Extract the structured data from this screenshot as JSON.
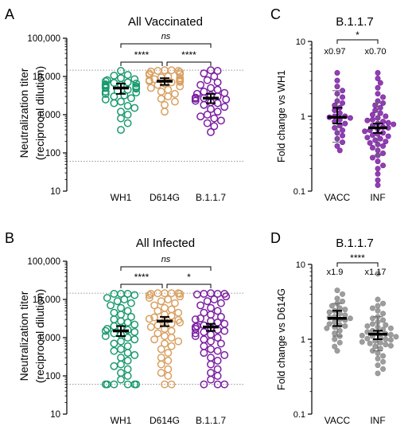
{
  "chart_data": [
    {
      "panel": "A",
      "type": "scatter",
      "title": "All Vaccinated",
      "ylabel": [
        "Neutralization titer",
        "(reciprocal dilution)"
      ],
      "yscale": "log",
      "ylim": [
        10,
        100000
      ],
      "yticks": [
        10,
        100,
        1000,
        10000,
        100000
      ],
      "ytick_labels": [
        "10",
        "100",
        "1,000",
        "10,000",
        "100,000"
      ],
      "reference_lines": [
        14580,
        60
      ],
      "categories": [
        "WH1",
        "D614G",
        "B.1.1.7"
      ],
      "colors": [
        "#1a9a6e",
        "#d9a062",
        "#7b1fa2"
      ],
      "marker": "open-circle",
      "series": [
        {
          "category": "WH1",
          "median": 5000,
          "ci": [
            3500,
            6500
          ],
          "values": [
            14000,
            11000,
            10500,
            9000,
            8500,
            8000,
            7500,
            7000,
            6800,
            6500,
            6200,
            6000,
            5800,
            5500,
            5300,
            5100,
            5000,
            4800,
            4500,
            4200,
            4000,
            3800,
            3500,
            3200,
            3000,
            2700,
            2500,
            2200,
            2000,
            1700,
            1500,
            1200,
            1000,
            800,
            600,
            400
          ]
        },
        {
          "category": "D614G",
          "median": 7500,
          "ci": [
            6000,
            9000
          ],
          "values": [
            14500,
            14500,
            14000,
            14000,
            13500,
            13000,
            12000,
            11500,
            11000,
            10000,
            9500,
            9000,
            8500,
            8200,
            8000,
            7700,
            7500,
            7200,
            7000,
            6500,
            6000,
            5500,
            5000,
            4500,
            4000,
            3500,
            3000,
            2600,
            2200,
            1800,
            1200
          ]
        },
        {
          "category": "B.1.1.7",
          "median": 2700,
          "ci": [
            2000,
            3500
          ],
          "values": [
            14500,
            14000,
            12000,
            10000,
            8000,
            7000,
            6000,
            5000,
            4500,
            4000,
            3700,
            3500,
            3200,
            3000,
            2800,
            2700,
            2600,
            2500,
            2300,
            2100,
            2000,
            1800,
            1600,
            1400,
            1200,
            1000,
            900,
            800,
            700,
            600,
            500,
            350
          ]
        }
      ],
      "comparisons": [
        {
          "between": [
            "WH1",
            "B.1.1.7"
          ],
          "label": "ns"
        },
        {
          "between": [
            "WH1",
            "D614G"
          ],
          "label": "****"
        },
        {
          "between": [
            "D614G",
            "B.1.1.7"
          ],
          "label": "****"
        }
      ]
    },
    {
      "panel": "B",
      "type": "scatter",
      "title": "All Infected",
      "ylabel": [
        "Neutralization titer",
        "(reciprocal dilution)"
      ],
      "yscale": "log",
      "ylim": [
        10,
        100000
      ],
      "yticks": [
        10,
        100,
        1000,
        10000,
        100000
      ],
      "ytick_labels": [
        "10",
        "100",
        "1,000",
        "10,000",
        "100,000"
      ],
      "reference_lines": [
        14580,
        60
      ],
      "categories": [
        "WH1",
        "D614G",
        "B.1.1.7"
      ],
      "colors": [
        "#1a9a6e",
        "#d9a062",
        "#7b1fa2"
      ],
      "marker": "open-circle",
      "series": [
        {
          "category": "WH1",
          "median": 1500,
          "ci": [
            1100,
            2000
          ],
          "values": [
            14000,
            14000,
            14000,
            13000,
            11000,
            10000,
            9000,
            8000,
            7000,
            6000,
            5000,
            4500,
            4000,
            3500,
            3000,
            2700,
            2500,
            2200,
            2000,
            1800,
            1700,
            1600,
            1500,
            1400,
            1300,
            1200,
            1100,
            1000,
            900,
            800,
            700,
            600,
            500,
            450,
            400,
            350,
            300,
            250,
            200,
            180,
            150,
            120,
            100,
            80,
            60,
            60,
            60,
            60,
            60,
            60
          ]
        },
        {
          "category": "D614G",
          "median": 2700,
          "ci": [
            2000,
            3500
          ],
          "values": [
            14500,
            14500,
            14500,
            14500,
            14000,
            14000,
            13000,
            12000,
            11000,
            10000,
            9000,
            8000,
            7000,
            6000,
            5500,
            5000,
            4500,
            4000,
            3700,
            3400,
            3100,
            2900,
            2700,
            2500,
            2300,
            2100,
            1900,
            1700,
            1500,
            1300,
            1100,
            1000,
            900,
            800,
            700,
            600,
            500,
            400,
            300,
            250,
            200,
            150,
            120,
            100,
            60,
            60
          ]
        },
        {
          "category": "B.1.1.7",
          "median": 1900,
          "ci": [
            1500,
            2300
          ],
          "values": [
            14500,
            14000,
            14000,
            14000,
            13500,
            12000,
            10000,
            9000,
            8000,
            7000,
            6000,
            5000,
            4500,
            4000,
            3500,
            3200,
            3000,
            2700,
            2500,
            2300,
            2100,
            2000,
            1900,
            1800,
            1700,
            1600,
            1500,
            1400,
            1300,
            1200,
            1100,
            1000,
            900,
            800,
            700,
            600,
            500,
            450,
            400,
            350,
            300,
            250,
            200,
            150,
            120,
            100,
            80,
            60,
            60,
            60
          ]
        }
      ],
      "comparisons": [
        {
          "between": [
            "WH1",
            "B.1.1.7"
          ],
          "label": "ns"
        },
        {
          "between": [
            "WH1",
            "D614G"
          ],
          "label": "****"
        },
        {
          "between": [
            "D614G",
            "B.1.1.7"
          ],
          "label": "*"
        }
      ]
    },
    {
      "panel": "C",
      "type": "scatter",
      "title": "B.1.1.7",
      "ylabel": "Fold change vs WH1",
      "yscale": "log",
      "ylim": [
        0.1,
        10
      ],
      "yticks": [
        0.1,
        1,
        10
      ],
      "ytick_labels": [
        "0.1",
        "1",
        "10"
      ],
      "categories": [
        "VACC",
        "INF"
      ],
      "colors": [
        "#7b1fa2",
        "#7b1fa2"
      ],
      "marker": "filled-circle",
      "series": [
        {
          "category": "VACC",
          "median": 0.97,
          "ci": [
            0.8,
            1.3
          ],
          "sd": [
            0.45,
            2.2
          ],
          "annotation": "x0.97",
          "values": [
            3.8,
            3.0,
            2.5,
            2.2,
            2.0,
            1.8,
            1.6,
            1.5,
            1.4,
            1.3,
            1.2,
            1.1,
            1.0,
            1.0,
            0.97,
            0.95,
            0.9,
            0.85,
            0.8,
            0.75,
            0.7,
            0.65,
            0.6,
            0.55,
            0.5,
            0.45,
            0.4,
            0.35
          ]
        },
        {
          "category": "INF",
          "median": 0.7,
          "ci": [
            0.6,
            0.8
          ],
          "sd": [
            0.3,
            1.5
          ],
          "annotation": "x0.70",
          "values": [
            3.8,
            3.2,
            2.8,
            2.4,
            2.0,
            1.8,
            1.6,
            1.5,
            1.4,
            1.3,
            1.2,
            1.1,
            1.05,
            1.0,
            0.95,
            0.9,
            0.88,
            0.85,
            0.82,
            0.8,
            0.78,
            0.75,
            0.72,
            0.7,
            0.68,
            0.65,
            0.63,
            0.6,
            0.58,
            0.56,
            0.54,
            0.52,
            0.5,
            0.48,
            0.46,
            0.44,
            0.42,
            0.4,
            0.38,
            0.35,
            0.32,
            0.3,
            0.28,
            0.25,
            0.22,
            0.2,
            0.17,
            0.14,
            0.12
          ]
        }
      ],
      "comparisons": [
        {
          "between": [
            "VACC",
            "INF"
          ],
          "label": "*"
        }
      ]
    },
    {
      "panel": "D",
      "type": "scatter",
      "title": "B.1.1.7",
      "ylabel": "Fold change vs D614G",
      "yscale": "log",
      "ylim": [
        0.1,
        10
      ],
      "yticks": [
        0.1,
        1,
        10
      ],
      "ytick_labels": [
        "0.1",
        "1",
        "10"
      ],
      "categories": [
        "VACC",
        "INF"
      ],
      "colors": [
        "#8c8c8c",
        "#8c8c8c"
      ],
      "marker": "filled-circle",
      "series": [
        {
          "category": "VACC",
          "median": 1.9,
          "ci": [
            1.5,
            2.4
          ],
          "sd": [
            1.1,
            3.0
          ],
          "annotation": "x1.9",
          "values": [
            4.5,
            4.0,
            3.5,
            3.2,
            3.0,
            2.8,
            2.6,
            2.5,
            2.4,
            2.3,
            2.2,
            2.1,
            2.0,
            1.95,
            1.9,
            1.85,
            1.8,
            1.7,
            1.6,
            1.55,
            1.5,
            1.45,
            1.4,
            1.3,
            1.2,
            1.1,
            1.0,
            0.9,
            0.8,
            0.7
          ]
        },
        {
          "category": "INF",
          "median": 1.17,
          "ci": [
            1.0,
            1.3
          ],
          "sd": [
            0.7,
            2.0
          ],
          "annotation": "x1.17",
          "values": [
            7.5,
            3.4,
            3.0,
            2.8,
            2.6,
            2.4,
            2.2,
            2.0,
            1.9,
            1.8,
            1.7,
            1.6,
            1.55,
            1.5,
            1.45,
            1.4,
            1.35,
            1.3,
            1.25,
            1.2,
            1.18,
            1.15,
            1.12,
            1.1,
            1.08,
            1.05,
            1.02,
            1.0,
            0.98,
            0.95,
            0.92,
            0.9,
            0.88,
            0.85,
            0.82,
            0.8,
            0.75,
            0.7,
            0.65,
            0.6,
            0.55,
            0.5,
            0.45,
            0.4,
            0.35
          ]
        }
      ],
      "comparisons": [
        {
          "between": [
            "VACC",
            "INF"
          ],
          "label": "****"
        }
      ]
    }
  ]
}
